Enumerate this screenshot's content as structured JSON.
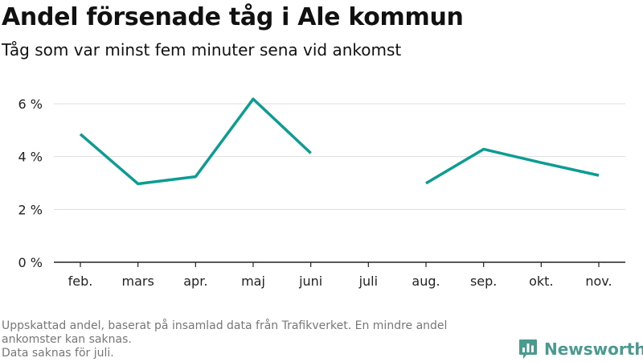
{
  "header": {
    "title": "Andel försenade tåg i Ale kommun",
    "subtitle": "Tåg som var minst fem minuter sena vid ankomst"
  },
  "footnote": {
    "line1": "Uppskattad andel, baserat på insamlad data från Trafikverket. En mindre andel ankomster kan saknas.",
    "line2": "Data saknas för juli."
  },
  "brand": {
    "name": "Newsworthy",
    "icon": "bar-chart-badge-icon",
    "color": "#4a9a8f"
  },
  "chart_data": {
    "type": "line",
    "title": "Andel försenade tåg i Ale kommun",
    "subtitle": "Tåg som var minst fem minuter sena vid ankomst",
    "categories": [
      "feb.",
      "mars",
      "apr.",
      "maj",
      "juni",
      "juli",
      "aug.",
      "sep.",
      "okt.",
      "nov."
    ],
    "series": [
      {
        "values": [
          4.85,
          2.97,
          3.24,
          6.18,
          4.13,
          null,
          2.99,
          4.28,
          3.77,
          3.29
        ],
        "color": "#0c9c92"
      }
    ],
    "ylim": [
      0,
      6
    ],
    "yticks": [
      0,
      2,
      4,
      6
    ],
    "ytick_labels": [
      "0 %",
      "2 %",
      "4 %",
      "6 %"
    ],
    "grid": true,
    "xlabel": "",
    "ylabel": ""
  }
}
